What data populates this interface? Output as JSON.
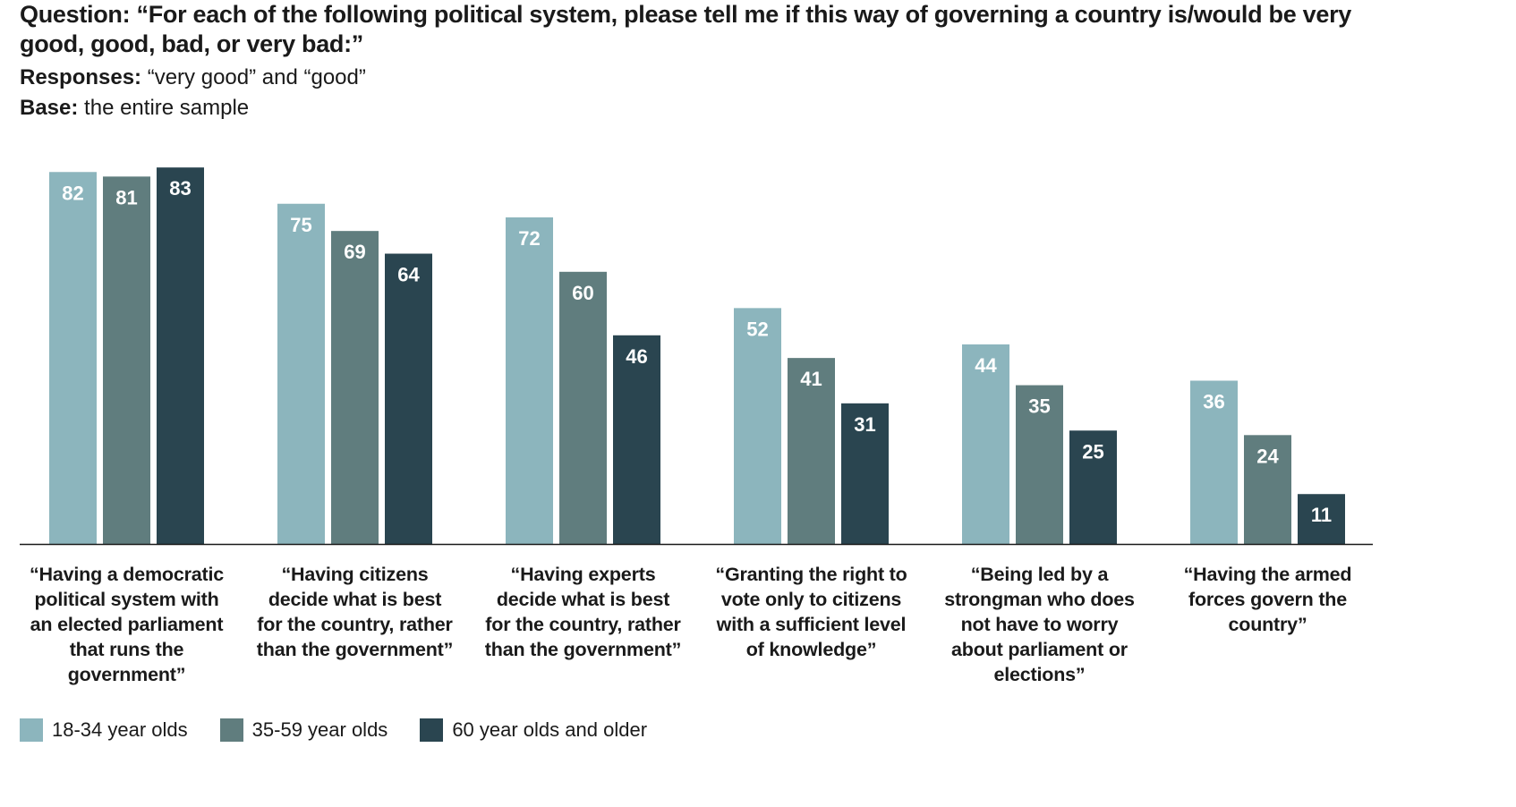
{
  "header": {
    "question_label": "Question:",
    "question_text": "“For each of the following political system, please tell me if this way of governing a country is/would be very good, good, bad, or very bad:”",
    "responses_label": "Responses:",
    "responses_text": "“very good” and “good”",
    "base_label": "Base:",
    "base_text": "the entire sample"
  },
  "colors": {
    "series_0": "#8cb5bd",
    "series_1": "#607d7e",
    "series_2": "#2a4550",
    "baseline": "#1a1a1a",
    "value_label": "#ffffff"
  },
  "chart_data": {
    "type": "bar",
    "title": "",
    "xlabel": "",
    "ylabel": "",
    "ylim": [
      0,
      83
    ],
    "grid": false,
    "legend_position": "bottom-left",
    "categories": [
      "“Having a democratic political system with an elected parliament that runs the government”",
      "“Having citizens decide what is best for the country, rather than the government”",
      "“Having experts decide what is best for the country, rather than the government”",
      "“Granting the right to vote only to citizens with a sufficient level of knowledge”",
      "“Being led by a strongman who does not have to worry about parliament or elections”",
      "“Having the armed forces govern the country”"
    ],
    "category_label_lines": [
      [
        [
          "“Having a democratic",
          ""
        ],
        [
          "political system with",
          ""
        ],
        [
          "",
          "an elected parliament"
        ],
        [
          "that runs the",
          ""
        ],
        [
          "government”",
          ""
        ]
      ],
      [
        [
          "“Having ",
          "citizens"
        ],
        [
          "decide what is best",
          ""
        ],
        [
          "for the country, rather",
          ""
        ],
        [
          "than the government”",
          ""
        ]
      ],
      [
        [
          "“Having ",
          "experts"
        ],
        [
          "decide what is best",
          ""
        ],
        [
          "for the country, rather",
          ""
        ],
        [
          "than the government”",
          ""
        ]
      ],
      [
        [
          "“Granting the right to",
          ""
        ],
        [
          "vote only to citizens",
          ""
        ],
        [
          "with a sufficient level",
          ""
        ],
        [
          "of knowledge”",
          ""
        ]
      ],
      [
        [
          "“Being led by a",
          ""
        ],
        [
          "",
          "strongman",
          " who does"
        ],
        [
          "not have to worry",
          ""
        ],
        [
          "about parliament or",
          ""
        ],
        [
          "elections”",
          ""
        ]
      ],
      [
        [
          "“Having the armed",
          ""
        ],
        [
          "forces govern the",
          ""
        ],
        [
          "country”",
          ""
        ]
      ]
    ],
    "series": [
      {
        "name": "18-34 year olds",
        "values": [
          82,
          75,
          72,
          52,
          44,
          36
        ]
      },
      {
        "name": "35-59 year olds",
        "values": [
          81,
          69,
          60,
          41,
          35,
          24
        ]
      },
      {
        "name": "60 year olds and older",
        "values": [
          83,
          64,
          46,
          31,
          25,
          11
        ]
      }
    ]
  }
}
